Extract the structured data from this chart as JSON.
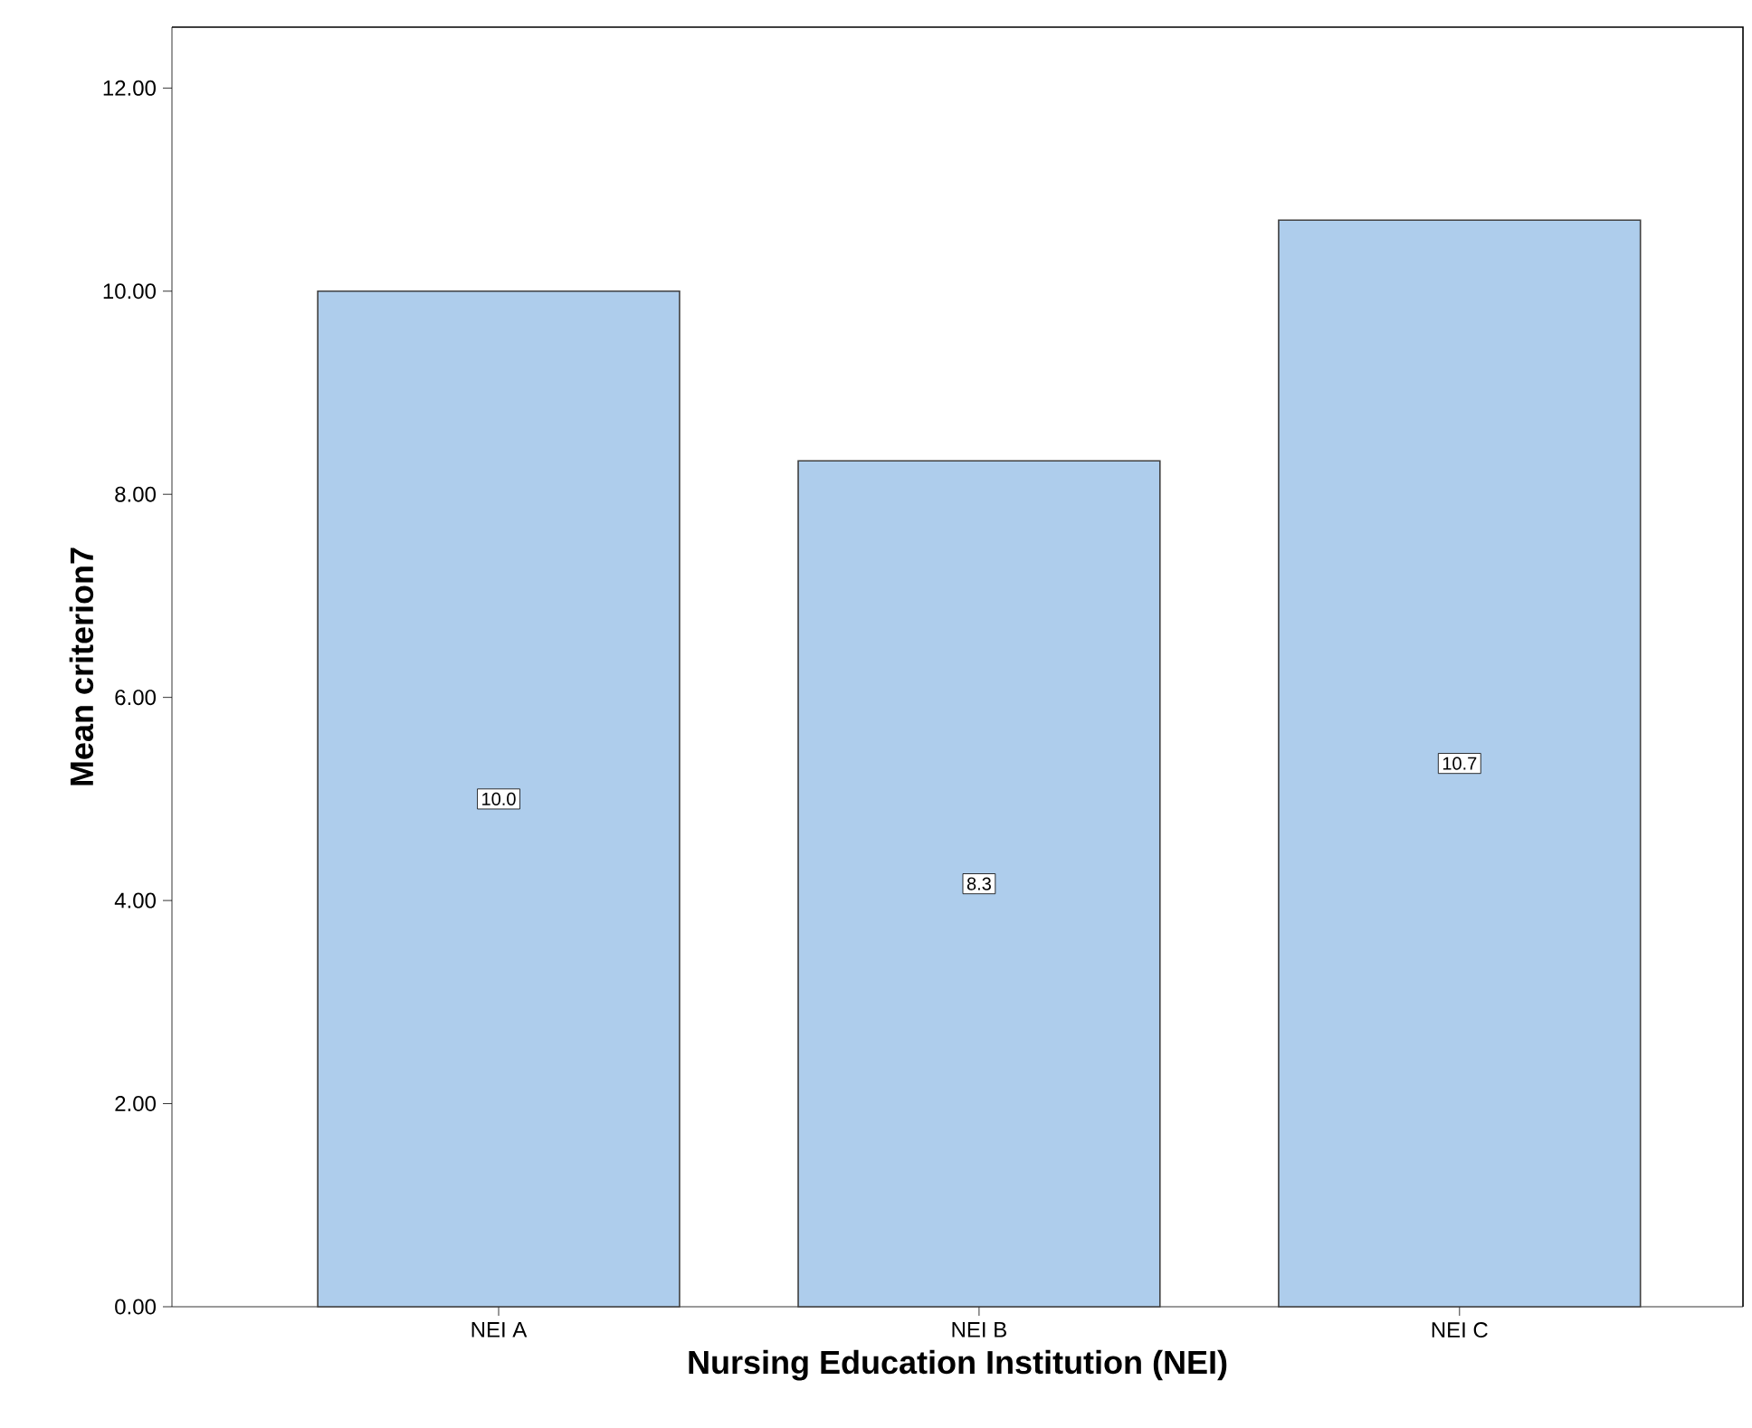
{
  "chart_data": {
    "type": "bar",
    "xlabel": "Nursing Education Institution (NEI)",
    "ylabel": "Mean criterion7",
    "categories": [
      "NEI A",
      "NEI B",
      "NEI C"
    ],
    "values": [
      10.0,
      8.33,
      10.7
    ],
    "value_labels": [
      "10.0",
      "8.3",
      "10.7"
    ],
    "color": "#aecdec",
    "ylim": [
      0,
      12.6
    ],
    "yticks": [
      {
        "value": 0,
        "label": "0.00"
      },
      {
        "value": 2,
        "label": "2.00"
      },
      {
        "value": 4,
        "label": "4.00"
      },
      {
        "value": 6,
        "label": "6.00"
      },
      {
        "value": 8,
        "label": "8.00"
      },
      {
        "value": 10,
        "label": "10.00"
      },
      {
        "value": 12,
        "label": "12.00"
      }
    ],
    "grid": false,
    "legend": false
  }
}
